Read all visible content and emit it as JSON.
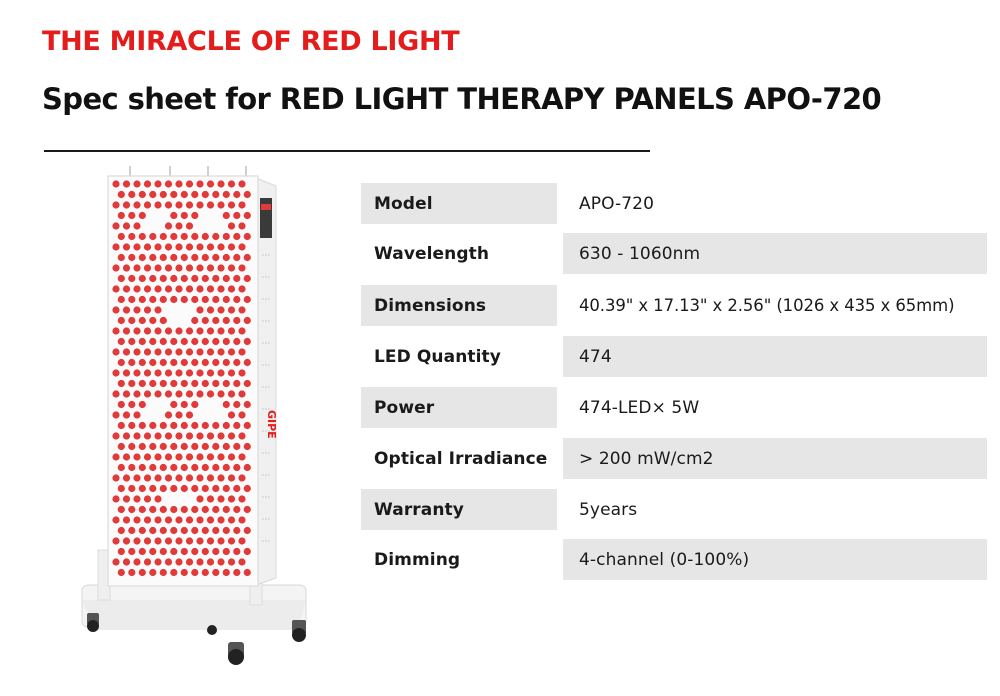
{
  "header": {
    "kicker": "THE MIRACLE OF RED LIGHT",
    "title": "Spec sheet for RED LIGHT THERAPY PANELS APO-720"
  },
  "colors": {
    "accent_red": "#e41c1c",
    "led_red": "#e03a3a",
    "row_grey": "#e6e6e6",
    "text_dark": "#111111"
  },
  "product": {
    "brand_mark": "GIPE",
    "image_description_icon": "red-light-panel-on-stand-image"
  },
  "specs": {
    "rows": [
      {
        "label": "Model",
        "value": "APO-720"
      },
      {
        "label": "Wavelength",
        "value": "630 - 1060nm"
      },
      {
        "label": "Dimensions",
        "value": "40.39\" x 17.13\" x 2.56\" (1026 x 435 x 65mm)"
      },
      {
        "label": "LED Quantity",
        "value": "474"
      },
      {
        "label": "Power",
        "value": "474-LED× 5W"
      },
      {
        "label": "Optical Irradiance",
        "value": "> 200 mW/cm2"
      },
      {
        "label": "Warranty",
        "value": "5years"
      },
      {
        "label": "Dimming",
        "value": "4-channel (0-100%)"
      }
    ]
  }
}
